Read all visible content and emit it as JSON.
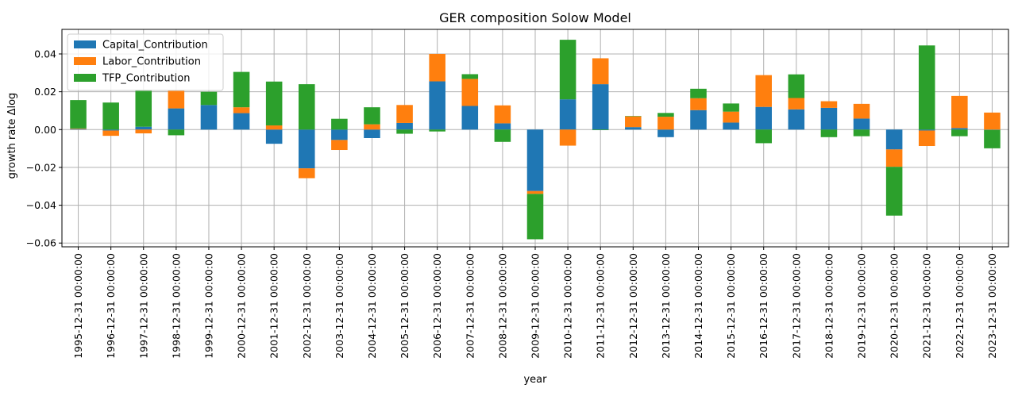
{
  "chart_data": {
    "type": "bar",
    "stacked": true,
    "title": "GER composition Solow Model",
    "xlabel": "year",
    "ylabel": "growth rate Δlog",
    "ylim": [
      -0.062,
      0.053
    ],
    "yticks": [
      -0.06,
      -0.04,
      -0.02,
      0.0,
      0.02,
      0.04
    ],
    "ytick_labels": [
      "−0.06",
      "−0.04",
      "−0.02",
      "0.00",
      "0.02",
      "0.04"
    ],
    "grid": true,
    "legend_position": "top-left",
    "categories": [
      "1995-12-31 00:00:00",
      "1996-12-31 00:00:00",
      "1997-12-31 00:00:00",
      "1998-12-31 00:00:00",
      "1999-12-31 00:00:00",
      "2000-12-31 00:00:00",
      "2001-12-31 00:00:00",
      "2002-12-31 00:00:00",
      "2003-12-31 00:00:00",
      "2004-12-31 00:00:00",
      "2005-12-31 00:00:00",
      "2006-12-31 00:00:00",
      "2007-12-31 00:00:00",
      "2008-12-31 00:00:00",
      "2009-12-31 00:00:00",
      "2010-12-31 00:00:00",
      "2011-12-31 00:00:00",
      "2012-12-31 00:00:00",
      "2013-12-31 00:00:00",
      "2014-12-31 00:00:00",
      "2015-12-31 00:00:00",
      "2016-12-31 00:00:00",
      "2017-12-31 00:00:00",
      "2018-12-31 00:00:00",
      "2019-12-31 00:00:00",
      "2020-12-31 00:00:00",
      "2021-12-31 00:00:00",
      "2022-12-31 00:00:00",
      "2023-12-31 00:00:00"
    ],
    "series": [
      {
        "name": "Capital_Contribution",
        "color": "#1f77b4",
        "values": [
          0.0003,
          -0.0005,
          0.0015,
          0.0112,
          0.013,
          0.0087,
          -0.0075,
          -0.0205,
          -0.0055,
          -0.0045,
          0.0035,
          0.0255,
          0.0125,
          0.0033,
          -0.0325,
          0.016,
          0.024,
          0.0013,
          -0.004,
          0.0103,
          0.0037,
          0.012,
          0.0107,
          0.0115,
          0.0058,
          -0.0105,
          -0.0005,
          0.0008,
          -0.0002
        ]
      },
      {
        "name": "Labor_Contribution",
        "color": "#ff7f0e",
        "values": [
          0.0003,
          -0.0028,
          -0.002,
          0.0096,
          0.0,
          0.0031,
          0.0022,
          -0.0052,
          -0.0053,
          0.0028,
          0.0095,
          0.0145,
          0.0143,
          0.0095,
          -0.0015,
          -0.0085,
          0.0137,
          0.0057,
          0.0068,
          0.0063,
          0.0058,
          0.0168,
          0.006,
          0.0035,
          0.0078,
          -0.0092,
          -0.0082,
          0.017,
          0.009
        ]
      },
      {
        "name": "TFP_Contribution",
        "color": "#2ca02c",
        "values": [
          0.015,
          0.0143,
          0.0195,
          -0.003,
          0.007,
          0.0187,
          0.0232,
          0.024,
          0.0057,
          0.009,
          -0.0022,
          -0.001,
          0.0025,
          -0.0065,
          -0.024,
          0.0315,
          -0.0003,
          0.0002,
          0.002,
          0.005,
          0.0043,
          -0.0072,
          0.0125,
          -0.004,
          -0.0035,
          -0.0258,
          0.0445,
          -0.0035,
          -0.0097
        ]
      }
    ]
  }
}
